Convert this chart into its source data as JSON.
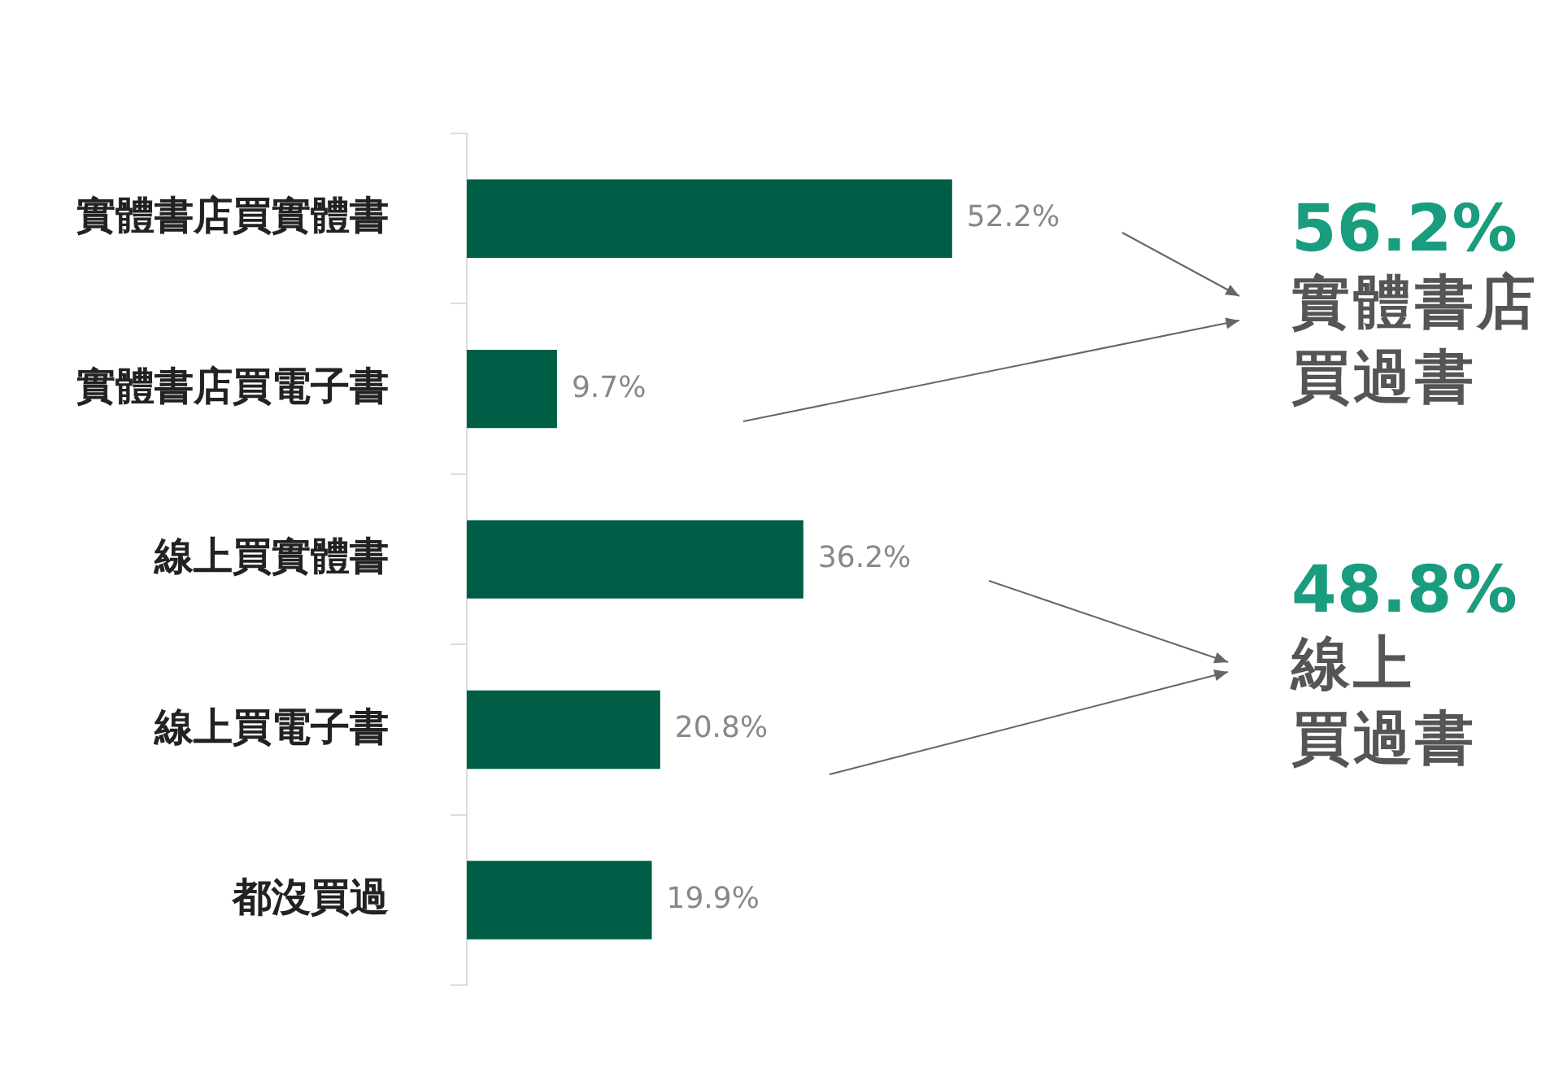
{
  "chart_data": {
    "type": "bar",
    "orientation": "horizontal",
    "categories": [
      "實體書店買實體書",
      "實體書店買電子書",
      "線上買實體書",
      "線上買電子書",
      "都沒買過"
    ],
    "values": [
      52.2,
      9.7,
      36.2,
      20.8,
      19.9
    ],
    "value_labels": [
      "52.2%",
      "9.7%",
      "36.2%",
      "20.8%",
      "19.9%"
    ],
    "color": "#005e46",
    "tick_labels": "y",
    "legend": false,
    "annotations": [
      "56.2%",
      "實體書店買過書",
      "48.8%",
      "線上買過書"
    ]
  }
}
